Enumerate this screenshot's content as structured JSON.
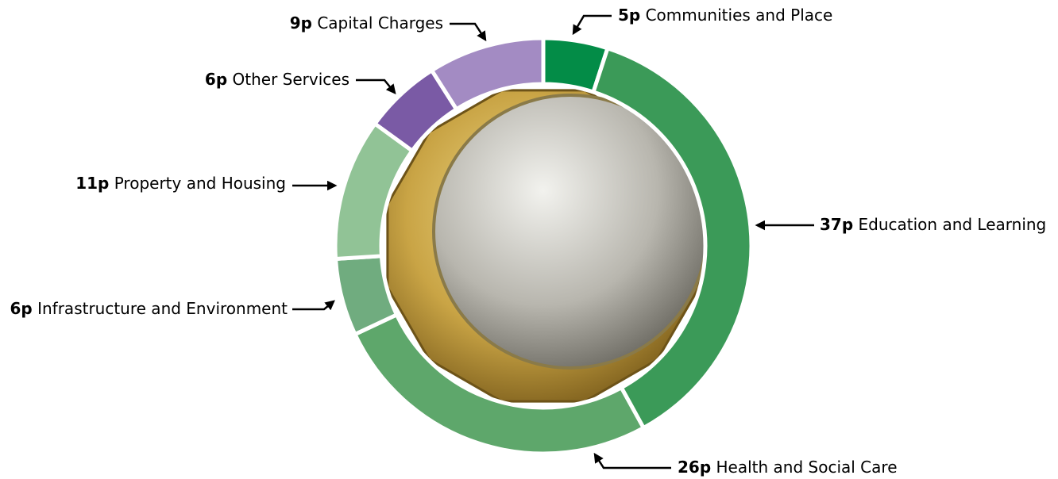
{
  "chart_data": {
    "type": "donut",
    "categories": [
      "Communities and Place",
      "Education and Learning",
      "Health and Social Care",
      "Infrastructure and Environment",
      "Property and Housing",
      "Other Services",
      "Capital Charges"
    ],
    "values": [
      5,
      37,
      26,
      6,
      11,
      6,
      9
    ],
    "value_labels": [
      "5p",
      "37p",
      "26p",
      "6p",
      "11p",
      "6p",
      "9p"
    ],
    "colors": [
      "#038c47",
      "#3b9a58",
      "#5ea76b",
      "#70ac7f",
      "#91c396",
      "#7a5aa5",
      "#a38bc3"
    ]
  }
}
